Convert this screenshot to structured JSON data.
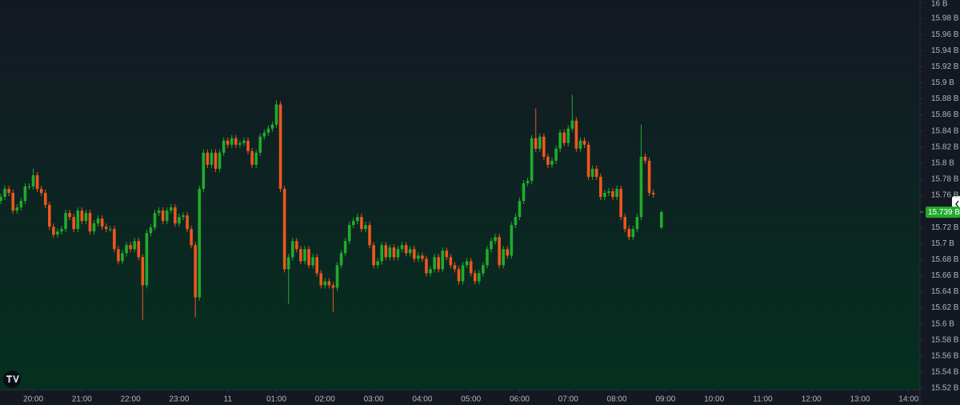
{
  "chart_data": {
    "type": "candlestick",
    "up_color": "#22ab2c",
    "down_color": "#f0561d",
    "x": [
      "19:20",
      "19:25",
      "19:30",
      "19:35",
      "19:40",
      "19:45",
      "19:50",
      "19:55",
      "20:00",
      "20:05",
      "20:10",
      "20:15",
      "20:20",
      "20:25",
      "20:30",
      "20:35",
      "20:40",
      "20:45",
      "20:50",
      "20:55",
      "21:00",
      "21:05",
      "21:10",
      "21:15",
      "21:20",
      "21:25",
      "21:30",
      "21:35",
      "21:40",
      "21:45",
      "21:50",
      "21:55",
      "22:00",
      "22:05",
      "22:10",
      "22:15",
      "22:20",
      "22:25",
      "22:30",
      "22:35",
      "22:40",
      "22:45",
      "22:50",
      "22:55",
      "23:00",
      "23:05",
      "23:10",
      "23:15",
      "23:20",
      "23:25",
      "23:30",
      "23:35",
      "23:40",
      "23:45",
      "23:50",
      "23:55",
      "00:00",
      "00:05",
      "00:10",
      "00:15",
      "00:20",
      "00:25",
      "00:30",
      "00:35",
      "00:40",
      "00:45",
      "00:50",
      "00:55",
      "01:00",
      "01:05",
      "01:10",
      "01:15",
      "01:20",
      "01:25",
      "01:30",
      "01:35",
      "01:40",
      "01:45",
      "01:50",
      "01:55",
      "02:00",
      "02:05",
      "02:10",
      "02:15",
      "02:20",
      "02:25",
      "02:30",
      "02:35",
      "02:40",
      "02:45",
      "02:50",
      "02:55",
      "03:00",
      "03:05",
      "03:10",
      "03:15",
      "03:20",
      "03:25",
      "03:30",
      "03:35",
      "03:40",
      "03:45",
      "03:50",
      "03:55",
      "04:00",
      "04:05",
      "04:10",
      "04:15",
      "04:20",
      "04:25",
      "04:30",
      "04:35",
      "04:40",
      "04:45",
      "04:50",
      "04:55",
      "05:00",
      "05:05",
      "05:10",
      "05:15",
      "05:20",
      "05:25",
      "05:30",
      "05:35",
      "05:40",
      "05:45",
      "05:50",
      "05:55",
      "06:00",
      "06:05",
      "06:10",
      "06:15",
      "06:20",
      "06:25",
      "06:30",
      "06:35",
      "06:40",
      "06:45",
      "06:50",
      "06:55",
      "07:00",
      "07:05",
      "07:10",
      "07:15",
      "07:20",
      "07:25",
      "07:30",
      "07:35",
      "07:40",
      "07:45",
      "07:50",
      "07:55",
      "08:00",
      "08:05",
      "08:10",
      "08:15",
      "08:20",
      "08:25",
      "08:30",
      "08:35",
      "08:40",
      "08:45",
      "08:55"
    ],
    "open": [
      15.753,
      15.758,
      15.768,
      15.763,
      15.741,
      15.745,
      15.753,
      15.771,
      15.771,
      15.785,
      15.768,
      15.763,
      15.748,
      15.721,
      15.711,
      15.715,
      15.718,
      15.738,
      15.733,
      15.718,
      15.741,
      15.728,
      15.738,
      15.715,
      15.725,
      15.731,
      15.721,
      15.718,
      15.718,
      15.693,
      15.678,
      15.688,
      15.698,
      15.693,
      15.703,
      15.683,
      15.648,
      15.713,
      15.72,
      15.738,
      15.741,
      15.728,
      15.741,
      15.745,
      15.725,
      15.733,
      15.735,
      15.718,
      15.698,
      15.633,
      15.768,
      15.813,
      15.798,
      15.813,
      15.793,
      15.813,
      15.828,
      15.823,
      15.831,
      15.823,
      15.825,
      15.828,
      15.815,
      15.798,
      15.813,
      15.833,
      15.838,
      15.843,
      15.848,
      15.873,
      15.768,
      15.668,
      15.683,
      15.703,
      15.693,
      15.678,
      15.693,
      15.673,
      15.683,
      15.663,
      15.648,
      15.653,
      15.648,
      15.645,
      15.673,
      15.688,
      15.703,
      15.723,
      15.728,
      15.733,
      15.718,
      15.723,
      15.698,
      15.673,
      15.678,
      15.698,
      15.683,
      15.695,
      15.683,
      15.693,
      15.698,
      15.688,
      15.693,
      15.681,
      15.685,
      15.681,
      15.663,
      15.668,
      15.683,
      15.668,
      15.691,
      15.683,
      15.673,
      15.668,
      15.653,
      15.673,
      15.678,
      15.663,
      15.653,
      15.663,
      15.673,
      15.693,
      15.703,
      15.708,
      15.673,
      15.693,
      15.685,
      15.723,
      15.733,
      15.753,
      15.775,
      15.778,
      15.831,
      15.818,
      15.833,
      15.808,
      15.798,
      15.803,
      15.818,
      15.838,
      15.825,
      15.843,
      15.853,
      15.818,
      15.828,
      15.823,
      15.783,
      15.793,
      15.783,
      15.758,
      15.763,
      15.765,
      15.758,
      15.768,
      15.733,
      15.718,
      15.708,
      15.718,
      15.733,
      15.808,
      15.803,
      15.763,
      15.72
    ],
    "high": [
      15.762,
      15.772,
      15.772,
      15.767,
      15.749,
      15.757,
      15.775,
      15.775,
      15.793,
      15.789,
      15.772,
      15.767,
      15.752,
      15.725,
      15.719,
      15.722,
      15.742,
      15.742,
      15.737,
      15.745,
      15.745,
      15.742,
      15.742,
      15.729,
      15.735,
      15.735,
      15.725,
      15.722,
      15.722,
      15.697,
      15.692,
      15.702,
      15.702,
      15.707,
      15.707,
      15.687,
      15.717,
      15.724,
      15.742,
      15.745,
      15.745,
      15.745,
      15.749,
      15.749,
      15.737,
      15.739,
      15.739,
      15.722,
      15.702,
      15.772,
      15.817,
      15.817,
      15.817,
      15.817,
      15.817,
      15.832,
      15.832,
      15.835,
      15.835,
      15.829,
      15.832,
      15.832,
      15.819,
      15.817,
      15.837,
      15.842,
      15.847,
      15.852,
      15.878,
      15.877,
      15.772,
      15.687,
      15.707,
      15.707,
      15.697,
      15.697,
      15.697,
      15.687,
      15.687,
      15.667,
      15.657,
      15.657,
      15.652,
      15.677,
      15.692,
      15.707,
      15.727,
      15.732,
      15.737,
      15.737,
      15.727,
      15.727,
      15.702,
      15.682,
      15.702,
      15.702,
      15.699,
      15.699,
      15.697,
      15.702,
      15.702,
      15.697,
      15.697,
      15.689,
      15.689,
      15.685,
      15.672,
      15.687,
      15.687,
      15.695,
      15.695,
      15.687,
      15.677,
      15.672,
      15.677,
      15.682,
      15.682,
      15.667,
      15.667,
      15.677,
      15.697,
      15.707,
      15.712,
      15.712,
      15.697,
      15.697,
      15.727,
      15.737,
      15.757,
      15.779,
      15.782,
      15.835,
      15.868,
      15.837,
      15.837,
      15.812,
      15.807,
      15.822,
      15.842,
      15.842,
      15.847,
      15.885,
      15.857,
      15.832,
      15.832,
      15.827,
      15.797,
      15.797,
      15.787,
      15.767,
      15.769,
      15.769,
      15.772,
      15.772,
      15.737,
      15.722,
      15.722,
      15.737,
      15.848,
      15.812,
      15.807,
      15.767,
      15.741
    ],
    "low": [
      15.749,
      15.754,
      15.759,
      15.737,
      15.737,
      15.741,
      15.749,
      15.767,
      15.767,
      15.764,
      15.759,
      15.744,
      15.717,
      15.707,
      15.707,
      15.711,
      15.714,
      15.729,
      15.714,
      15.714,
      15.724,
      15.724,
      15.711,
      15.711,
      15.721,
      15.717,
      15.714,
      15.714,
      15.689,
      15.674,
      15.674,
      15.684,
      15.689,
      15.689,
      15.679,
      15.605,
      15.644,
      15.709,
      15.716,
      15.734,
      15.724,
      15.724,
      15.737,
      15.721,
      15.721,
      15.729,
      15.714,
      15.694,
      15.608,
      15.629,
      15.764,
      15.794,
      15.794,
      15.789,
      15.789,
      15.809,
      15.819,
      15.819,
      15.819,
      15.819,
      15.821,
      15.811,
      15.794,
      15.794,
      15.809,
      15.829,
      15.834,
      15.839,
      15.844,
      15.764,
      15.664,
      15.625,
      15.679,
      15.689,
      15.674,
      15.674,
      15.669,
      15.669,
      15.659,
      15.644,
      15.644,
      15.644,
      15.615,
      15.641,
      15.669,
      15.684,
      15.699,
      15.719,
      15.724,
      15.714,
      15.714,
      15.694,
      15.669,
      15.669,
      15.674,
      15.679,
      15.679,
      15.679,
      15.679,
      15.689,
      15.684,
      15.684,
      15.677,
      15.677,
      15.677,
      15.659,
      15.659,
      15.664,
      15.664,
      15.664,
      15.679,
      15.669,
      15.664,
      15.649,
      15.649,
      15.669,
      15.659,
      15.649,
      15.649,
      15.659,
      15.669,
      15.689,
      15.699,
      15.669,
      15.669,
      15.681,
      15.681,
      15.719,
      15.729,
      15.749,
      15.771,
      15.774,
      15.814,
      15.814,
      15.804,
      15.794,
      15.794,
      15.799,
      15.814,
      15.821,
      15.821,
      15.839,
      15.814,
      15.814,
      15.819,
      15.779,
      15.779,
      15.779,
      15.754,
      15.754,
      15.759,
      15.754,
      15.754,
      15.729,
      15.714,
      15.704,
      15.704,
      15.714,
      15.729,
      15.799,
      15.759,
      15.757,
      15.718
    ],
    "close": [
      15.758,
      15.768,
      15.763,
      15.741,
      15.745,
      15.753,
      15.771,
      15.771,
      15.785,
      15.768,
      15.763,
      15.748,
      15.721,
      15.711,
      15.715,
      15.718,
      15.738,
      15.733,
      15.718,
      15.741,
      15.728,
      15.738,
      15.715,
      15.725,
      15.731,
      15.721,
      15.718,
      15.718,
      15.693,
      15.678,
      15.688,
      15.698,
      15.693,
      15.703,
      15.683,
      15.648,
      15.713,
      15.72,
      15.738,
      15.741,
      15.728,
      15.741,
      15.745,
      15.725,
      15.733,
      15.735,
      15.718,
      15.698,
      15.633,
      15.768,
      15.813,
      15.798,
      15.813,
      15.793,
      15.813,
      15.828,
      15.823,
      15.831,
      15.823,
      15.825,
      15.828,
      15.815,
      15.798,
      15.813,
      15.833,
      15.838,
      15.843,
      15.848,
      15.873,
      15.768,
      15.668,
      15.683,
      15.703,
      15.693,
      15.678,
      15.693,
      15.673,
      15.683,
      15.663,
      15.648,
      15.653,
      15.648,
      15.645,
      15.673,
      15.688,
      15.703,
      15.723,
      15.728,
      15.733,
      15.718,
      15.723,
      15.698,
      15.673,
      15.678,
      15.698,
      15.683,
      15.695,
      15.683,
      15.693,
      15.698,
      15.688,
      15.693,
      15.681,
      15.685,
      15.681,
      15.663,
      15.668,
      15.683,
      15.668,
      15.691,
      15.683,
      15.673,
      15.668,
      15.653,
      15.673,
      15.678,
      15.663,
      15.653,
      15.663,
      15.673,
      15.693,
      15.703,
      15.708,
      15.673,
      15.693,
      15.685,
      15.723,
      15.733,
      15.753,
      15.775,
      15.778,
      15.831,
      15.818,
      15.833,
      15.808,
      15.798,
      15.803,
      15.818,
      15.838,
      15.825,
      15.843,
      15.853,
      15.818,
      15.828,
      15.823,
      15.783,
      15.793,
      15.783,
      15.758,
      15.763,
      15.765,
      15.758,
      15.768,
      15.733,
      15.718,
      15.708,
      15.718,
      15.733,
      15.808,
      15.803,
      15.763,
      15.761,
      15.739
    ],
    "current_price": {
      "value": 15.739,
      "label": "15.739 B"
    },
    "xlim": [
      "19:19",
      "14:14"
    ],
    "xticks": [
      "20:00",
      "21:00",
      "22:00",
      "23:00",
      {
        "value": "00:00",
        "label": "11"
      },
      "01:00",
      "02:00",
      "03:00",
      "04:00",
      "05:00",
      "06:00",
      "07:00",
      "08:00",
      "09:00",
      "10:00",
      "11:00",
      "12:00",
      "13:00",
      "14:00"
    ],
    "ylim": [
      15.518,
      16.003
    ],
    "yticks": [
      {
        "value": 15.52,
        "label": "15.52 B"
      },
      {
        "value": 15.54,
        "label": "15.54 B"
      },
      {
        "value": 15.56,
        "label": "15.56 B"
      },
      {
        "value": 15.58,
        "label": "15.58 B"
      },
      {
        "value": 15.6,
        "label": "15.6 B"
      },
      {
        "value": 15.62,
        "label": "15.62 B"
      },
      {
        "value": 15.64,
        "label": "15.64 B"
      },
      {
        "value": 15.66,
        "label": "15.66 B"
      },
      {
        "value": 15.68,
        "label": "15.68 B"
      },
      {
        "value": 15.7,
        "label": "15.7 B"
      },
      {
        "value": 15.72,
        "label": "15.72 B"
      },
      {
        "value": 15.74,
        "label": "15.74 B"
      },
      {
        "value": 15.76,
        "label": "15.76 B"
      },
      {
        "value": 15.78,
        "label": "15.78 B"
      },
      {
        "value": 15.8,
        "label": "15.8 B"
      },
      {
        "value": 15.82,
        "label": "15.82 B"
      },
      {
        "value": 15.84,
        "label": "15.84 B"
      },
      {
        "value": 15.86,
        "label": "15.86 B"
      },
      {
        "value": 15.88,
        "label": "15.88 B"
      },
      {
        "value": 15.9,
        "label": "15.9 B"
      },
      {
        "value": 15.92,
        "label": "15.92 B"
      },
      {
        "value": 15.94,
        "label": "15.94 B"
      },
      {
        "value": 15.96,
        "label": "15.96 B"
      },
      {
        "value": 15.98,
        "label": "15.98 B"
      },
      {
        "value": 16,
        "label": "16 B"
      }
    ]
  }
}
